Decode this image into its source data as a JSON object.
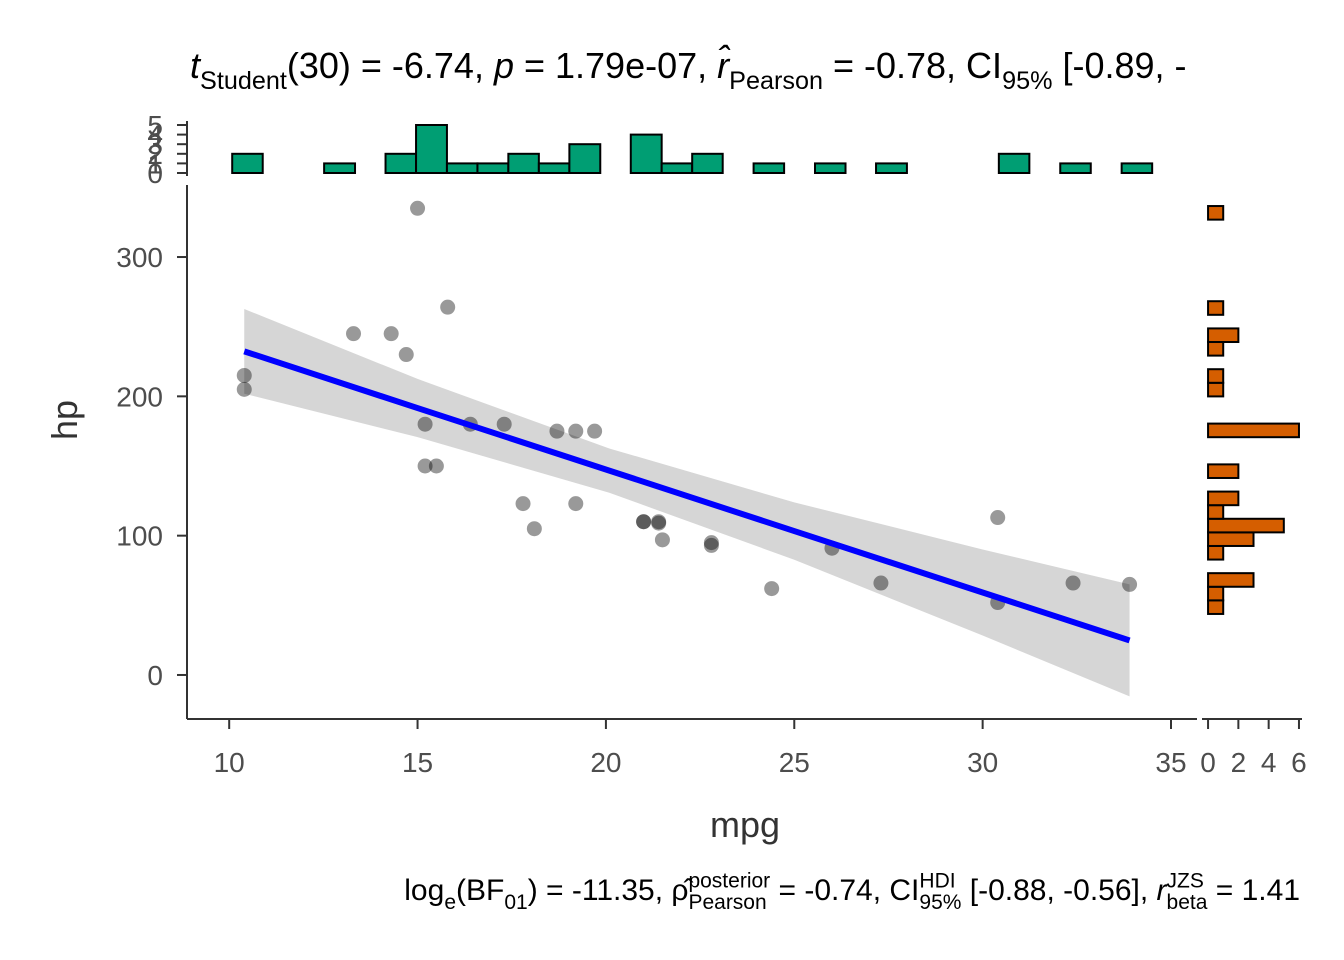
{
  "chart_data": {
    "type": "scatter",
    "title": [
      {
        "text": "t",
        "italic": true
      },
      {
        "sub": "Student"
      },
      {
        "text": "(30) = -6.74, "
      },
      {
        "text": "p",
        "italic": true
      },
      {
        "text": " = 1.79e-07, "
      },
      {
        "text": "r̂",
        "italic": true
      },
      {
        "sub": "Pearson"
      },
      {
        "text": " = -0.78, CI"
      },
      {
        "sub": "95%"
      },
      {
        "text": " [-0.89, -"
      }
    ],
    "subtitle": [
      {
        "text": "log"
      },
      {
        "sub": "e"
      },
      {
        "text": "(BF"
      },
      {
        "sub": "01"
      },
      {
        "text": ") = -11.35, "
      },
      {
        "text": "ρ̂"
      },
      {
        "sup": "posterior",
        "sub": "Pearson"
      },
      {
        "text": " = -0.74, CI"
      },
      {
        "sup": "HDI",
        "sub": "95%"
      },
      {
        "text": " [-0.88, -0.56], "
      },
      {
        "text": "r",
        "italic": true
      },
      {
        "sup": "JZS",
        "sub": "beta"
      },
      {
        "text": " = 1.41"
      }
    ],
    "xlabel": "mpg",
    "ylabel": "hp",
    "x": [
      21.0,
      21.0,
      22.8,
      21.4,
      18.7,
      18.1,
      14.3,
      24.4,
      22.8,
      19.2,
      17.8,
      16.4,
      17.3,
      15.2,
      10.4,
      10.4,
      14.7,
      32.4,
      30.4,
      33.9,
      21.5,
      15.5,
      15.2,
      13.3,
      19.2,
      27.3,
      26.0,
      30.4,
      15.8,
      19.7,
      15.0,
      21.4
    ],
    "values": [
      110,
      110,
      93,
      110,
      175,
      105,
      245,
      62,
      95,
      123,
      123,
      180,
      180,
      180,
      205,
      215,
      230,
      66,
      52,
      65,
      97,
      150,
      150,
      245,
      175,
      66,
      91,
      113,
      264,
      175,
      335,
      109
    ],
    "color": "#000000",
    "alpha": 0.4,
    "fit": {
      "x": [
        10.4,
        15,
        20.09,
        25,
        30,
        33.9
      ],
      "values": [
        232.3,
        191.6,
        146.7,
        103.3,
        59.2,
        24.8
      ],
      "lower": [
        201.9,
        170.7,
        130.8,
        82.7,
        28.3,
        -15.4
      ],
      "upper": [
        262.7,
        212.5,
        162.6,
        123.9,
        90.1,
        65.0
      ],
      "color": "#0000ff",
      "band_color": "#d6d6d6"
    },
    "xlim": [
      8.88,
      35.69
    ],
    "xticks": [
      10,
      15,
      20,
      25,
      30,
      35
    ],
    "ylim": [
      -31.6,
      351.7
    ],
    "yticks": [
      0,
      100,
      200,
      300
    ],
    "marginal_x": {
      "type": "histogram",
      "orientation": "vertical",
      "color": "#009E73",
      "bins": [
        10.08,
        10.89,
        11.71,
        12.52,
        13.34,
        14.15,
        14.96,
        15.78,
        16.59,
        17.41,
        18.22,
        19.03,
        19.85,
        20.66,
        21.48,
        22.29,
        23.1,
        23.92,
        24.73,
        25.55,
        26.36,
        27.17,
        27.99,
        28.8,
        29.62,
        30.43,
        31.24,
        32.06,
        32.87,
        33.69,
        34.5
      ],
      "counts": [
        2,
        0,
        0,
        1,
        0,
        2,
        5,
        1,
        1,
        2,
        1,
        3,
        0,
        4,
        1,
        2,
        0,
        1,
        0,
        1,
        0,
        1,
        0,
        0,
        0,
        2,
        0,
        1,
        0,
        1
      ],
      "ylim": [
        0,
        5
      ],
      "yticks": [
        0,
        1,
        2,
        3,
        4,
        5
      ]
    },
    "marginal_y": {
      "type": "histogram",
      "orientation": "horizontal",
      "color": "#D55E00",
      "bins": [
        43.8,
        53.56,
        63.32,
        73.08,
        82.84,
        92.6,
        102.36,
        112.12,
        121.88,
        131.64,
        141.4,
        151.16,
        160.92,
        170.68,
        180.44,
        190.2,
        199.96,
        209.72,
        219.48,
        229.24,
        239,
        248.76,
        258.52,
        268.28,
        278.04,
        287.8,
        297.56,
        307.32,
        317.08,
        326.84,
        336.6
      ],
      "counts": [
        1,
        1,
        3,
        0,
        1,
        3,
        5,
        1,
        2,
        0,
        2,
        0,
        0,
        6,
        0,
        0,
        1,
        1,
        0,
        1,
        2,
        0,
        1,
        0,
        0,
        0,
        0,
        0,
        0,
        1
      ],
      "xlim": [
        -0.4,
        6.2
      ],
      "xticks": [
        0,
        2,
        4,
        6
      ]
    }
  }
}
